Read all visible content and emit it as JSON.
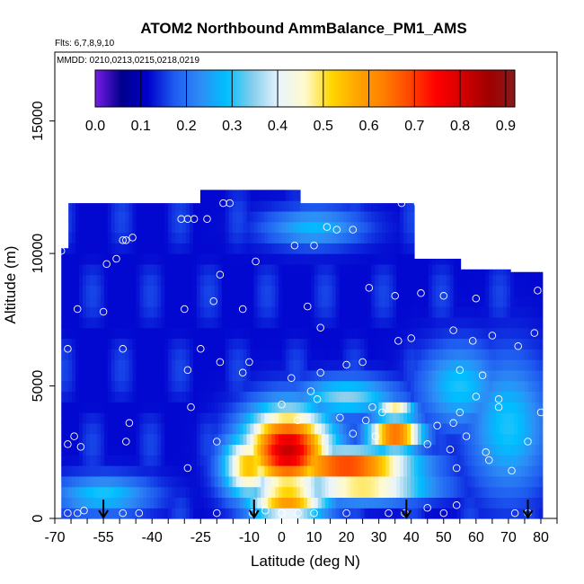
{
  "chart_data": {
    "type": "heatmap",
    "title": "ATOM2 Northbound AmmBalance_PM1_AMS",
    "flights_label": "Flts: 6,7,8,9,10",
    "dates_label": "MMDD: 0210,0213,0215,0218,0219",
    "xlabel": "Latitude (deg N)",
    "ylabel": "Altitude (m)",
    "xlim": [
      -70,
      85
    ],
    "ylim": [
      0,
      17600
    ],
    "x_ticks": [
      -70,
      -55,
      -40,
      -25,
      -10,
      0,
      10,
      20,
      30,
      40,
      50,
      60,
      70,
      80
    ],
    "x_tick_labels": [
      "-70",
      "-55",
      "-40",
      "-25",
      "-10",
      "0",
      "10",
      "20",
      "30",
      "40",
      "50",
      "60",
      "70",
      "80"
    ],
    "x_minor_ticks": [
      -65,
      -60,
      -50,
      -45,
      -35,
      -30,
      -20,
      -15,
      -5,
      5,
      15,
      25,
      35,
      45,
      55,
      65,
      75,
      85
    ],
    "y_ticks": [
      0,
      5000,
      10000,
      15000
    ],
    "y_tick_labels": [
      "0",
      "5000",
      "10000",
      "15000"
    ],
    "colorbar": {
      "min": 0.0,
      "max": 0.92,
      "ticks": [
        0.0,
        0.1,
        0.2,
        0.3,
        0.4,
        0.5,
        0.6,
        0.7,
        0.8,
        0.9
      ],
      "tick_labels": [
        "0.0",
        "0.1",
        "0.2",
        "0.3",
        "0.4",
        "0.5",
        "0.6",
        "0.7",
        "0.8",
        "0.9"
      ],
      "colors": [
        "#7a1ce8",
        "#00008b",
        "#0000cd",
        "#1e5af0",
        "#2e8cf5",
        "#00bfff",
        "#87ceeb",
        "#e8f4ff",
        "#fffacd",
        "#ffd700",
        "#ffa500",
        "#ff7f00",
        "#ff4500",
        "#ff0000",
        "#d40000",
        "#a00000",
        "#8b1a1a"
      ]
    },
    "upper_fill_value": 0.12,
    "hotspots": [
      {
        "lat": 2,
        "alt": 2600,
        "value": 0.82,
        "rx": 13,
        "ry": 1500
      },
      {
        "lat": 20,
        "alt": 2000,
        "value": 0.75,
        "rx": 20,
        "ry": 600
      },
      {
        "lat": 35,
        "alt": 3200,
        "value": 0.7,
        "rx": 8,
        "ry": 600
      },
      {
        "lat": 2,
        "alt": 700,
        "value": 0.6,
        "rx": 12,
        "ry": 700
      },
      {
        "lat": -10,
        "alt": 2000,
        "value": 0.55,
        "rx": 8,
        "ry": 1200
      },
      {
        "lat": 25,
        "alt": 1200,
        "value": 0.55,
        "rx": 20,
        "ry": 500
      },
      {
        "lat": 35,
        "alt": 4100,
        "value": 0.5,
        "rx": 6,
        "ry": 400
      },
      {
        "lat": -55,
        "alt": 900,
        "value": 0.3,
        "rx": 15,
        "ry": 700
      },
      {
        "lat": 55,
        "alt": 5000,
        "value": 0.3,
        "rx": 12,
        "ry": 1500
      },
      {
        "lat": 70,
        "alt": 3500,
        "value": 0.3,
        "rx": 12,
        "ry": 2500
      },
      {
        "lat": 20,
        "alt": 4600,
        "value": 0.35,
        "rx": 15,
        "ry": 700
      },
      {
        "lat": 10,
        "alt": 11000,
        "value": 0.28,
        "rx": 15,
        "ry": 700
      },
      {
        "lat": -60,
        "alt": 3000,
        "value": 0.05,
        "rx": 10,
        "ry": 800
      },
      {
        "lat": 60,
        "alt": 8500,
        "value": 0.05,
        "rx": 10,
        "ry": 500
      }
    ],
    "arrows_lat": [
      -55,
      -8.5,
      38.5,
      76
    ],
    "sample_points": [
      [
        -68,
        10100
      ],
      [
        -66,
        6400
      ],
      [
        -66,
        2800
      ],
      [
        -64,
        3100
      ],
      [
        -63,
        7900
      ],
      [
        -62,
        2700
      ],
      [
        -66,
        200
      ],
      [
        -63,
        200
      ],
      [
        -61,
        300
      ],
      [
        -55,
        7800
      ],
      [
        -54,
        9600
      ],
      [
        -51,
        9800
      ],
      [
        -49,
        10500
      ],
      [
        -48,
        10500
      ],
      [
        -46,
        10600
      ],
      [
        -49,
        6400
      ],
      [
        -47,
        3600
      ],
      [
        -48,
        2900
      ],
      [
        -49,
        200
      ],
      [
        -44,
        200
      ],
      [
        -31,
        11300
      ],
      [
        -29,
        11300
      ],
      [
        -27,
        11300
      ],
      [
        -23,
        11300
      ],
      [
        -28,
        4200
      ],
      [
        -29,
        1900
      ],
      [
        -21,
        8200
      ],
      [
        -19,
        9200
      ],
      [
        -25,
        6400
      ],
      [
        -30,
        7900
      ],
      [
        -29,
        5600
      ],
      [
        -19,
        5900
      ],
      [
        -16,
        11900
      ],
      [
        -18,
        11900
      ],
      [
        -20,
        2900
      ],
      [
        -12,
        7900
      ],
      [
        -10,
        5900
      ],
      [
        -8,
        9700
      ],
      [
        -12,
        5500
      ],
      [
        -20,
        200
      ],
      [
        -5,
        300
      ],
      [
        0,
        4300
      ],
      [
        5,
        3700
      ],
      [
        3,
        5300
      ],
      [
        8,
        8000
      ],
      [
        4,
        10300
      ],
      [
        10,
        10300
      ],
      [
        14,
        11000
      ],
      [
        17,
        10900
      ],
      [
        22,
        10900
      ],
      [
        12,
        7200
      ],
      [
        12,
        5500
      ],
      [
        9,
        4800
      ],
      [
        11,
        4500
      ],
      [
        10,
        200
      ],
      [
        20,
        200
      ],
      [
        25,
        5900
      ],
      [
        20,
        5800
      ],
      [
        18,
        3800
      ],
      [
        22,
        3200
      ],
      [
        29,
        3100
      ],
      [
        26,
        3700
      ],
      [
        28,
        4200
      ],
      [
        31,
        4000
      ],
      [
        27,
        8700
      ],
      [
        35,
        8400
      ],
      [
        36,
        6700
      ],
      [
        40,
        6800
      ],
      [
        43,
        8500
      ],
      [
        37,
        11900
      ],
      [
        42,
        11900
      ],
      [
        33,
        200
      ],
      [
        38,
        200
      ],
      [
        45,
        400
      ],
      [
        50,
        8400
      ],
      [
        53,
        7100
      ],
      [
        55,
        5600
      ],
      [
        55,
        4000
      ],
      [
        53,
        3600
      ],
      [
        52,
        2600
      ],
      [
        57,
        3100
      ],
      [
        60,
        8300
      ],
      [
        59,
        6700
      ],
      [
        62,
        5400
      ],
      [
        65,
        6900
      ],
      [
        67,
        4200
      ],
      [
        70,
        9600
      ],
      [
        75,
        9600
      ],
      [
        76,
        9500
      ],
      [
        79,
        8600
      ],
      [
        78,
        7000
      ],
      [
        80,
        4000
      ],
      [
        71,
        1800
      ],
      [
        76,
        2900
      ],
      [
        72,
        200
      ],
      [
        76,
        200
      ],
      [
        63,
        2500
      ],
      [
        64,
        2200
      ],
      [
        67,
        4500
      ],
      [
        73,
        6500
      ],
      [
        60,
        4600
      ],
      [
        45,
        2800
      ],
      [
        48,
        3500
      ],
      [
        54,
        500
      ],
      [
        50,
        200
      ],
      [
        54,
        1900
      ],
      [
        -9,
        200
      ],
      [
        0,
        200
      ],
      [
        5,
        200
      ]
    ]
  }
}
